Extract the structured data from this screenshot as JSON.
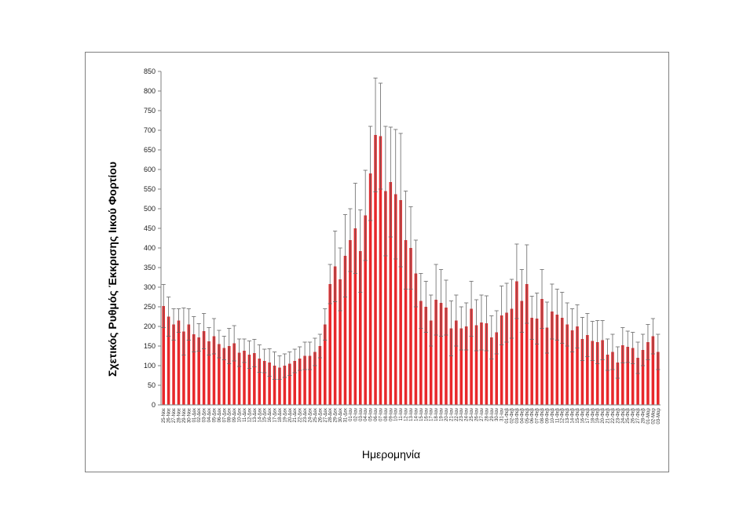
{
  "chart_data": {
    "type": "bar",
    "title": "",
    "xlabel": "Ημερομηνία",
    "ylabel": "Σχετικός Ρυθμός Έκκρισης Ιικού Φορτίου",
    "ylim": [
      0,
      850
    ],
    "yticks": [
      0,
      50,
      100,
      150,
      200,
      250,
      300,
      350,
      400,
      450,
      500,
      550,
      600,
      650,
      700,
      750,
      800,
      850
    ],
    "grid": false,
    "legend": "none",
    "bar_color": "#e8282b",
    "error_color": "#666666",
    "categories": [
      "25-Νοε",
      "26-Νοε",
      "27-Νοε",
      "28-Νοε",
      "29-Νοε",
      "30-Νοε",
      "01-Δεκ",
      "02-Δεκ",
      "03-Δεκ",
      "04-Δεκ",
      "05-Δεκ",
      "06-Δεκ",
      "07-Δεκ",
      "08-Δεκ",
      "09-Δεκ",
      "10-Δεκ",
      "11-Δεκ",
      "12-Δεκ",
      "13-Δεκ",
      "14-Δεκ",
      "15-Δεκ",
      "16-Δεκ",
      "17-Δεκ",
      "18-Δεκ",
      "19-Δεκ",
      "20-Δεκ",
      "21-Δεκ",
      "22-Δεκ",
      "23-Δεκ",
      "24-Δεκ",
      "25-Δεκ",
      "26-Δεκ",
      "27-Δεκ",
      "28-Δεκ",
      "29-Δεκ",
      "30-Δεκ",
      "31-Δεκ",
      "01-Ιαν",
      "02-Ιαν",
      "03-Ιαν",
      "04-Ιαν",
      "05-Ιαν",
      "06-Ιαν",
      "07-Ιαν",
      "08-Ιαν",
      "09-Ιαν",
      "10-Ιαν",
      "11-Ιαν",
      "12-Ιαν",
      "13-Ιαν",
      "14-Ιαν",
      "15-Ιαν",
      "16-Ιαν",
      "17-Ιαν",
      "18-Ιαν",
      "19-Ιαν",
      "20-Ιαν",
      "21-Ιαν",
      "22-Ιαν",
      "23-Ιαν",
      "24-Ιαν",
      "25-Ιαν",
      "26-Ιαν",
      "27-Ιαν",
      "28-Ιαν",
      "29-Ιαν",
      "30-Ιαν",
      "31-Ιαν",
      "01-Φεβ",
      "02-Φεβ",
      "03-Φεβ",
      "04-Φεβ",
      "05-Φεβ",
      "06-Φεβ",
      "07-Φεβ",
      "08-Φεβ",
      "09-Φεβ",
      "10-Φεβ",
      "11-Φεβ",
      "12-Φεβ",
      "13-Φεβ",
      "14-Φεβ",
      "15-Φεβ",
      "16-Φεβ",
      "17-Φεβ",
      "18-Φεβ",
      "19-Φεβ",
      "20-Φεβ",
      "21-Φεβ",
      "22-Φεβ",
      "23-Φεβ",
      "24-Φεβ",
      "25-Φεβ",
      "26-Φεβ",
      "27-Φεβ",
      "28-Φεβ",
      "01-Μαρ",
      "02-Μαρ",
      "03-Μαρ"
    ],
    "values": [
      252,
      225,
      205,
      215,
      187,
      205,
      180,
      172,
      188,
      162,
      175,
      155,
      145,
      150,
      157,
      133,
      138,
      128,
      132,
      118,
      112,
      108,
      100,
      95,
      100,
      105,
      112,
      118,
      125,
      125,
      135,
      150,
      205,
      308,
      353,
      320,
      380,
      420,
      450,
      392,
      483,
      590,
      688,
      685,
      545,
      568,
      537,
      522,
      420,
      400,
      335,
      265,
      250,
      215,
      268,
      260,
      248,
      195,
      215,
      195,
      200,
      245,
      203,
      210,
      208,
      172,
      185,
      228,
      235,
      245,
      315,
      265,
      308,
      222,
      220,
      270,
      197,
      238,
      230,
      222,
      205,
      190,
      200,
      168,
      178,
      163,
      160,
      165,
      128,
      135,
      108,
      152,
      148,
      145,
      120,
      140,
      160,
      175,
      135
    ],
    "errors": [
      55,
      50,
      40,
      30,
      60,
      40,
      45,
      35,
      45,
      35,
      45,
      35,
      30,
      45,
      45,
      35,
      30,
      35,
      35,
      35,
      30,
      35,
      35,
      30,
      30,
      30,
      30,
      30,
      35,
      35,
      35,
      30,
      40,
      50,
      90,
      80,
      105,
      80,
      115,
      105,
      115,
      120,
      145,
      135,
      165,
      140,
      165,
      170,
      125,
      105,
      85,
      70,
      65,
      65,
      90,
      85,
      70,
      70,
      65,
      55,
      60,
      70,
      65,
      70,
      70,
      55,
      55,
      75,
      75,
      75,
      95,
      80,
      100,
      55,
      65,
      75,
      65,
      70,
      65,
      65,
      55,
      55,
      55,
      55,
      55,
      50,
      55,
      50,
      40,
      45,
      40,
      45,
      40,
      40,
      40,
      40,
      45,
      45,
      45
    ]
  }
}
